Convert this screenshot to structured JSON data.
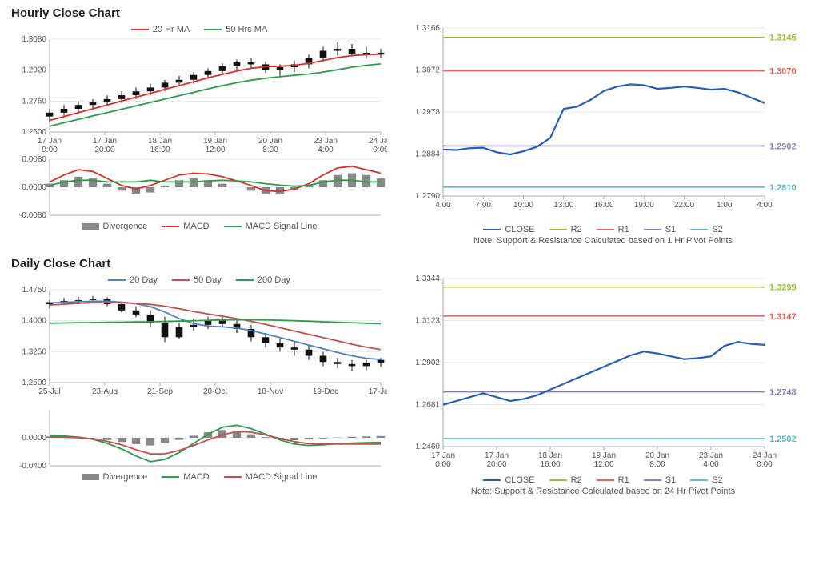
{
  "colors": {
    "bg": "#ffffff",
    "grid": "#e9e9e9",
    "axis": "#aaaaaa",
    "text": "#555555",
    "ma20hr": "#d9302c",
    "ma50hr": "#2e9b4f",
    "candle": "#111111",
    "divergence": "#888888",
    "macd_hourly": "#d9302c",
    "macd_signal_hourly": "#2e9b4f",
    "close": "#2a5db0",
    "r2": "#9bbf3a",
    "r1": "#e6645f",
    "s1": "#8a7fb8",
    "s2": "#5fb7c9",
    "ma20d": "#4f81bd",
    "ma50d": "#c0504d",
    "ma200d": "#2e9b4f",
    "macd_daily": "#2e9b4f",
    "macd_signal_daily": "#c0504d"
  },
  "hourly": {
    "title": "Hourly Close Chart",
    "price": {
      "ylim": [
        1.26,
        1.308
      ],
      "yticks": [
        1.26,
        1.276,
        1.292,
        1.308
      ],
      "xlabels": [
        "17 Jan 0:00",
        "17 Jan 20:00",
        "18 Jan 16:00",
        "19 Jan 12:00",
        "20 Jan 8:00",
        "23 Jan 4:00",
        "24 Jan 0:00"
      ],
      "legend": [
        {
          "label": "20 Hr MA",
          "type": "line",
          "colorKey": "ma20hr"
        },
        {
          "label": "50 Hrs MA",
          "type": "line",
          "colorKey": "ma50hr"
        }
      ],
      "ohlc": [
        [
          1.268,
          1.272,
          1.265,
          1.27
        ],
        [
          1.27,
          1.274,
          1.268,
          1.272
        ],
        [
          1.272,
          1.276,
          1.27,
          1.274
        ],
        [
          1.274,
          1.277,
          1.272,
          1.2755
        ],
        [
          1.2755,
          1.279,
          1.274,
          1.277
        ],
        [
          1.277,
          1.281,
          1.275,
          1.279
        ],
        [
          1.279,
          1.283,
          1.277,
          1.281
        ],
        [
          1.281,
          1.285,
          1.279,
          1.283
        ],
        [
          1.283,
          1.287,
          1.281,
          1.2855
        ],
        [
          1.2855,
          1.289,
          1.2835,
          1.287
        ],
        [
          1.287,
          1.291,
          1.285,
          1.2895
        ],
        [
          1.2895,
          1.293,
          1.2875,
          1.2915
        ],
        [
          1.2915,
          1.2955,
          1.2895,
          1.294
        ],
        [
          1.294,
          1.2975,
          1.292,
          1.296
        ],
        [
          1.296,
          1.2985,
          1.293,
          1.295
        ],
        [
          1.295,
          1.2965,
          1.2905,
          1.292
        ],
        [
          1.292,
          1.295,
          1.289,
          1.2935
        ],
        [
          1.2935,
          1.297,
          1.291,
          1.295
        ],
        [
          1.295,
          1.3,
          1.293,
          1.2985
        ],
        [
          1.2985,
          1.304,
          1.2965,
          1.302
        ],
        [
          1.302,
          1.3065,
          1.2995,
          1.303
        ],
        [
          1.303,
          1.3055,
          1.299,
          1.3005
        ],
        [
          1.3005,
          1.304,
          1.298,
          1.301
        ],
        [
          1.301,
          1.303,
          1.2985,
          1.3
        ]
      ],
      "ma20": [
        1.266,
        1.268,
        1.27,
        1.272,
        1.274,
        1.276,
        1.278,
        1.28,
        1.282,
        1.284,
        1.286,
        1.288,
        1.2898,
        1.2915,
        1.293,
        1.2938,
        1.294,
        1.2945,
        1.2955,
        1.297,
        1.2985,
        1.2995,
        1.3,
        1.3003
      ],
      "ma50": [
        1.263,
        1.2648,
        1.2665,
        1.2683,
        1.27,
        1.2718,
        1.2735,
        1.2753,
        1.277,
        1.2788,
        1.2805,
        1.2823,
        1.284,
        1.2855,
        1.2868,
        1.2878,
        1.2886,
        1.2893,
        1.29,
        1.291,
        1.2922,
        1.2935,
        1.2945,
        1.2952
      ]
    },
    "macd": {
      "ylim": [
        -0.008,
        0.008
      ],
      "yticks": [
        -0.008,
        0.0,
        0.008
      ],
      "legend": [
        {
          "label": "Divergence",
          "type": "bar",
          "colorKey": "divergence"
        },
        {
          "label": "MACD",
          "type": "line",
          "colorKey": "macd_hourly"
        },
        {
          "label": "MACD Signal Line",
          "type": "line",
          "colorKey": "macd_signal_hourly"
        }
      ],
      "hist": [
        0.001,
        0.002,
        0.003,
        0.0025,
        0.001,
        -0.001,
        -0.002,
        -0.0015,
        0.0005,
        0.002,
        0.0025,
        0.002,
        0.001,
        0.0,
        -0.001,
        -0.002,
        -0.0018,
        -0.0008,
        0.0005,
        0.002,
        0.0035,
        0.004,
        0.0035,
        0.0025
      ],
      "macd": [
        0.0015,
        0.0035,
        0.005,
        0.0045,
        0.0025,
        0.0005,
        -0.0005,
        0.0005,
        0.002,
        0.0035,
        0.004,
        0.0038,
        0.003,
        0.0018,
        0.0005,
        -0.001,
        -0.0012,
        -0.0005,
        0.001,
        0.0035,
        0.0055,
        0.006,
        0.005,
        0.004
      ],
      "signal": [
        0.0005,
        0.0015,
        0.002,
        0.002,
        0.0015,
        0.0015,
        0.0015,
        0.002,
        0.0015,
        0.0015,
        0.0015,
        0.0018,
        0.002,
        0.0018,
        0.0015,
        0.001,
        0.0006,
        0.0003,
        0.0005,
        0.0015,
        0.002,
        0.002,
        0.0015,
        0.0015
      ]
    },
    "sr": {
      "ylim": [
        1.279,
        1.3166
      ],
      "yticks": [
        1.279,
        1.2884,
        1.2978,
        1.3072,
        1.3166
      ],
      "xlabels": [
        "4:00",
        "7:00",
        "10:00",
        "13:00",
        "16:00",
        "19:00",
        "22:00",
        "1:00",
        "4:00"
      ],
      "levels": {
        "r2": 1.3145,
        "r1": 1.307,
        "s1": 1.2902,
        "s2": 1.281
      },
      "close": [
        1.2894,
        1.2893,
        1.2897,
        1.2898,
        1.2888,
        1.2883,
        1.289,
        1.29,
        1.292,
        1.2985,
        1.299,
        1.3005,
        1.3025,
        1.3035,
        1.304,
        1.3038,
        1.303,
        1.3032,
        1.3035,
        1.3032,
        1.3028,
        1.303,
        1.3022,
        1.301,
        1.2998
      ],
      "note": "Note: Support & Resistance Calculated based on 1 Hr Pivot Points",
      "legend": [
        {
          "label": "CLOSE",
          "colorKey": "close"
        },
        {
          "label": "R2",
          "colorKey": "r2"
        },
        {
          "label": "R1",
          "colorKey": "r1"
        },
        {
          "label": "S1",
          "colorKey": "s1"
        },
        {
          "label": "S2",
          "colorKey": "s2"
        }
      ]
    }
  },
  "daily": {
    "title": "Daily Close Chart",
    "price": {
      "ylim": [
        1.25,
        1.475
      ],
      "yticks": [
        1.25,
        1.325,
        1.4,
        1.475
      ],
      "xlabels": [
        "25-Jul",
        "23-Aug",
        "21-Sep",
        "20-Oct",
        "18-Nov",
        "19-Dec",
        "17-Jan"
      ],
      "legend": [
        {
          "label": "20 Day",
          "type": "line",
          "colorKey": "ma20d"
        },
        {
          "label": "50 Day",
          "type": "line",
          "colorKey": "ma50d"
        },
        {
          "label": "200 Day",
          "type": "line",
          "colorKey": "ma200d"
        }
      ],
      "ohlc": [
        [
          1.44,
          1.45,
          1.43,
          1.445
        ],
        [
          1.445,
          1.455,
          1.438,
          1.448
        ],
        [
          1.448,
          1.458,
          1.44,
          1.45
        ],
        [
          1.45,
          1.46,
          1.442,
          1.452
        ],
        [
          1.452,
          1.457,
          1.435,
          1.44
        ],
        [
          1.44,
          1.445,
          1.42,
          1.425
        ],
        [
          1.425,
          1.435,
          1.408,
          1.415
        ],
        [
          1.415,
          1.425,
          1.385,
          1.395
        ],
        [
          1.395,
          1.41,
          1.348,
          1.36
        ],
        [
          1.36,
          1.395,
          1.355,
          1.385
        ],
        [
          1.385,
          1.405,
          1.375,
          1.39
        ],
        [
          1.39,
          1.41,
          1.38,
          1.4
        ],
        [
          1.4,
          1.415,
          1.385,
          1.392
        ],
        [
          1.392,
          1.4,
          1.37,
          1.38
        ],
        [
          1.38,
          1.39,
          1.35,
          1.36
        ],
        [
          1.36,
          1.37,
          1.335,
          1.345
        ],
        [
          1.345,
          1.355,
          1.325,
          1.335
        ],
        [
          1.335,
          1.35,
          1.315,
          1.33
        ],
        [
          1.33,
          1.34,
          1.305,
          1.315
        ],
        [
          1.315,
          1.325,
          1.29,
          1.3
        ],
        [
          1.3,
          1.31,
          1.285,
          1.295
        ],
        [
          1.295,
          1.305,
          1.278,
          1.29
        ],
        [
          1.29,
          1.305,
          1.28,
          1.298
        ],
        [
          1.298,
          1.31,
          1.288,
          1.305
        ]
      ],
      "ma20": [
        1.443,
        1.445,
        1.446,
        1.447,
        1.447,
        1.445,
        1.441,
        1.434,
        1.421,
        1.405,
        1.393,
        1.387,
        1.385,
        1.382,
        1.376,
        1.368,
        1.359,
        1.35,
        1.341,
        1.332,
        1.323,
        1.315,
        1.309,
        1.306
      ],
      "ma50": [
        1.438,
        1.44,
        1.442,
        1.4435,
        1.444,
        1.4435,
        1.442,
        1.4395,
        1.435,
        1.429,
        1.4225,
        1.4165,
        1.411,
        1.405,
        1.3985,
        1.391,
        1.383,
        1.375,
        1.367,
        1.359,
        1.351,
        1.343,
        1.336,
        1.33
      ],
      "ma200": [
        1.394,
        1.3945,
        1.395,
        1.3955,
        1.396,
        1.3965,
        1.397,
        1.3975,
        1.398,
        1.399,
        1.4,
        1.401,
        1.4018,
        1.4022,
        1.4022,
        1.4018,
        1.401,
        1.4,
        1.3988,
        1.3975,
        1.3962,
        1.395,
        1.394,
        1.393
      ]
    },
    "macd": {
      "ylim": [
        -0.04,
        0.04
      ],
      "yticks": [
        -0.04,
        0.0
      ],
      "legend": [
        {
          "label": "Divergence",
          "type": "bar",
          "colorKey": "divergence"
        },
        {
          "label": "MACD",
          "type": "line",
          "colorKey": "macd_daily"
        },
        {
          "label": "MACD Signal Line",
          "type": "line",
          "colorKey": "macd_signal_daily"
        }
      ],
      "hist": [
        0.002,
        0.0015,
        0.001,
        -0.0005,
        -0.003,
        -0.006,
        -0.009,
        -0.011,
        -0.008,
        -0.003,
        0.003,
        0.008,
        0.011,
        0.009,
        0.005,
        0.001,
        -0.002,
        -0.0035,
        -0.0025,
        -0.001,
        0.0005,
        0.0015,
        0.002,
        0.0025
      ],
      "macd": [
        0.003,
        0.0025,
        0.001,
        -0.002,
        -0.008,
        -0.016,
        -0.026,
        -0.034,
        -0.031,
        -0.021,
        -0.008,
        0.005,
        0.015,
        0.018,
        0.013,
        0.005,
        -0.003,
        -0.009,
        -0.011,
        -0.01,
        -0.0085,
        -0.0075,
        -0.007,
        -0.0065
      ],
      "signal": [
        0.001,
        0.001,
        0.0,
        -0.0015,
        -0.005,
        -0.01,
        -0.017,
        -0.023,
        -0.023,
        -0.018,
        -0.011,
        -0.003,
        0.004,
        0.009,
        0.008,
        0.004,
        -0.001,
        -0.0055,
        -0.0085,
        -0.009,
        -0.009,
        -0.009,
        -0.009,
        -0.009
      ]
    },
    "sr": {
      "ylim": [
        1.246,
        1.3344
      ],
      "yticks": [
        1.246,
        1.2681,
        1.2902,
        1.3123,
        1.3344
      ],
      "xlabels": [
        "17 Jan 0:00",
        "17 Jan 20:00",
        "18 Jan 16:00",
        "19 Jan 12:00",
        "20 Jan 8:00",
        "23 Jan 4:00",
        "24 Jan 0:00"
      ],
      "levels": {
        "r2": 1.3299,
        "r1": 1.3147,
        "s1": 1.2748,
        "s2": 1.2502
      },
      "close": [
        1.268,
        1.27,
        1.272,
        1.274,
        1.272,
        1.27,
        1.271,
        1.273,
        1.276,
        1.279,
        1.282,
        1.285,
        1.288,
        1.291,
        1.294,
        1.296,
        1.295,
        1.2935,
        1.292,
        1.2925,
        1.2935,
        1.299,
        1.301,
        1.3,
        1.2995
      ],
      "note": "Note: Support & Resistance Calculated based on 24 Hr Pivot Points",
      "legend": [
        {
          "label": "CLOSE",
          "colorKey": "close"
        },
        {
          "label": "R2",
          "colorKey": "r2"
        },
        {
          "label": "R1",
          "colorKey": "r1"
        },
        {
          "label": "S1",
          "colorKey": "s1"
        },
        {
          "label": "S2",
          "colorKey": "s2"
        }
      ]
    }
  }
}
